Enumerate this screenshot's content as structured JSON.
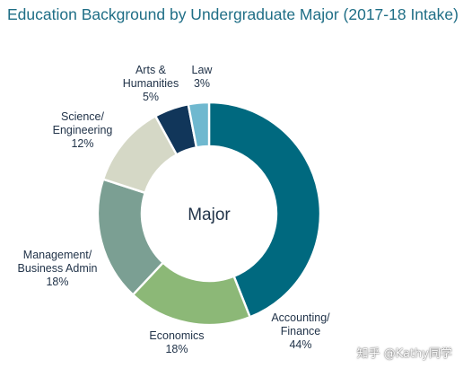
{
  "chart_data": {
    "type": "pie",
    "title": "Education Background by Undergraduate Major (2017-18 Intake)",
    "center_label": "Major",
    "slices": [
      {
        "label_lines": [
          "Accounting/",
          "Finance"
        ],
        "value": 44,
        "value_text": "44%",
        "color": "#00697f"
      },
      {
        "label_lines": [
          "Economics"
        ],
        "value": 18,
        "value_text": "18%",
        "color": "#8cb877"
      },
      {
        "label_lines": [
          "Management/",
          "Business Admin"
        ],
        "value": 18,
        "value_text": "18%",
        "color": "#7b9f93"
      },
      {
        "label_lines": [
          "Science/",
          "Engineering"
        ],
        "value": 12,
        "value_text": "12%",
        "color": "#d5d8c6"
      },
      {
        "label_lines": [
          "Arts &",
          "Humanities"
        ],
        "value": 5,
        "value_text": "5%",
        "color": "#11365a"
      },
      {
        "label_lines": [
          "Law"
        ],
        "value": 3,
        "value_text": "3%",
        "color": "#6fb8cf"
      }
    ]
  },
  "watermark": "知乎 @Kathy同学"
}
